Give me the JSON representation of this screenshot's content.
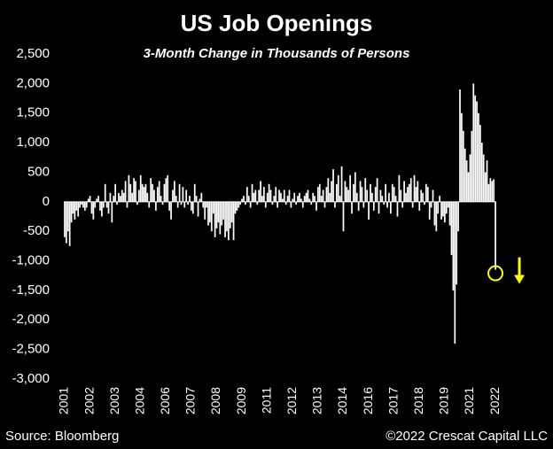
{
  "chart_data": {
    "type": "bar",
    "title": "US Job Openings",
    "subtitle": "3-Month Change in Thousands of Persons",
    "source": "Source: Bloomberg",
    "credit": "©2022 Crescat Capital LLC",
    "color": "#ffffff",
    "categories": [
      "2001",
      null,
      null,
      null,
      null,
      null,
      null,
      null,
      null,
      null,
      null,
      null,
      null,
      null,
      null,
      "2002",
      null,
      null,
      null,
      null,
      null,
      null,
      null,
      null,
      null,
      null,
      null,
      null,
      null,
      null,
      "2003",
      null,
      null,
      null,
      null,
      null,
      null,
      null,
      null,
      null,
      null,
      null,
      null,
      null,
      null,
      "2004",
      null,
      null,
      null,
      null,
      null,
      null,
      null,
      null,
      null,
      null,
      null,
      null,
      null,
      null,
      "2006",
      null,
      null,
      null,
      null,
      null,
      null,
      null,
      null,
      null,
      null,
      null,
      null,
      null,
      null,
      "2007",
      null,
      null,
      null,
      null,
      null,
      null,
      null,
      null,
      null,
      null,
      null,
      null,
      null,
      null,
      "2008",
      null,
      null,
      null,
      null,
      null,
      null,
      null,
      null,
      null,
      null,
      null,
      null,
      null,
      null,
      "2009",
      null,
      null,
      null,
      null,
      null,
      null,
      null,
      null,
      null,
      null,
      null,
      null,
      null,
      null,
      "2011",
      null,
      null,
      null,
      null,
      null,
      null,
      null,
      null,
      null,
      null,
      null,
      null,
      null,
      null,
      "2012",
      null,
      null,
      null,
      null,
      null,
      null,
      null,
      null,
      null,
      null,
      null,
      null,
      null,
      null,
      "2013",
      null,
      null,
      null,
      null,
      null,
      null,
      null,
      null,
      null,
      null,
      null,
      null,
      null,
      null,
      "2014",
      null,
      null,
      null,
      null,
      null,
      null,
      null,
      null,
      null,
      null,
      null,
      null,
      null,
      null,
      "2016",
      null,
      null,
      null,
      null,
      null,
      null,
      null,
      null,
      null,
      null,
      null,
      null,
      null,
      null,
      "2017",
      null,
      null,
      null,
      null,
      null,
      null,
      null,
      null,
      null,
      null,
      null,
      null,
      null,
      null,
      "2018",
      null,
      null,
      null,
      null,
      null,
      null,
      null,
      null,
      null,
      null,
      null,
      null,
      null,
      null,
      "2019",
      null,
      null,
      null,
      null,
      null,
      null,
      null,
      null,
      null,
      null,
      null,
      null,
      null,
      null,
      "2021",
      null,
      null,
      null,
      null,
      null,
      null,
      null,
      null,
      null,
      null,
      null,
      null,
      null,
      null,
      "2022"
    ],
    "values": [
      -600,
      -700,
      -500,
      -750,
      -350,
      -200,
      -300,
      -150,
      -250,
      -100,
      -50,
      -100,
      -150,
      -100,
      50,
      100,
      -200,
      -300,
      -100,
      50,
      100,
      -150,
      -250,
      -100,
      300,
      -100,
      -200,
      150,
      -350,
      100,
      300,
      -50,
      150,
      100,
      200,
      150,
      350,
      -100,
      450,
      300,
      150,
      400,
      350,
      -50,
      200,
      450,
      300,
      250,
      300,
      150,
      -100,
      400,
      300,
      200,
      -150,
      250,
      350,
      100,
      -50,
      300,
      400,
      450,
      -150,
      -300,
      200,
      350,
      100,
      -100,
      300,
      -50,
      250,
      -100,
      200,
      -50,
      100,
      -150,
      -200,
      300,
      100,
      -250,
      50,
      150,
      -100,
      -300,
      -100,
      -400,
      -350,
      -500,
      -200,
      -600,
      -450,
      -350,
      -550,
      -400,
      -300,
      -600,
      -500,
      -650,
      -450,
      -350,
      -650,
      -200,
      -150,
      -100,
      -50,
      50,
      100,
      -50,
      250,
      100,
      -100,
      300,
      150,
      200,
      -50,
      200,
      350,
      100,
      250,
      -100,
      150,
      300,
      200,
      -50,
      100,
      250,
      -100,
      200,
      150,
      50,
      200,
      -50,
      100,
      200,
      -100,
      50,
      150,
      -50,
      100,
      150,
      50,
      -100,
      100,
      150,
      200,
      50,
      -50,
      150,
      100,
      -150,
      250,
      300,
      100,
      200,
      -100,
      250,
      400,
      150,
      350,
      550,
      -100,
      300,
      450,
      100,
      600,
      -500,
      350,
      250,
      200,
      450,
      -200,
      300,
      500,
      150,
      -150,
      350,
      250,
      -100,
      400,
      200,
      -300,
      300,
      150,
      -150,
      250,
      400,
      -200,
      200,
      100,
      -50,
      300,
      -100,
      150,
      -200,
      300,
      250,
      100,
      -250,
      450,
      200,
      -100,
      350,
      150,
      250,
      300,
      400,
      -100,
      450,
      250,
      350,
      -150,
      200,
      150,
      -50,
      300,
      250,
      -300,
      -100,
      200,
      -400,
      -500,
      -200,
      100,
      -300,
      -250,
      -350,
      -200,
      -100,
      -400,
      -900,
      -1500,
      -2400,
      -1400,
      -500,
      1900,
      1500,
      1200,
      900,
      700,
      500,
      800,
      1200,
      2000,
      1800,
      1700,
      1500,
      1300,
      1000,
      800,
      500,
      700,
      300,
      400,
      350,
      380,
      -1150
    ],
    "ylim": [
      -3000,
      2500
    ],
    "yticks": [
      {
        "value": -3000,
        "label": "-3,000"
      },
      {
        "value": -2500,
        "label": "-2,500"
      },
      {
        "value": -2000,
        "label": "-2,000"
      },
      {
        "value": -1500,
        "label": "-1,500"
      },
      {
        "value": -1000,
        "label": "-1,000"
      },
      -500,
      0,
      500,
      {
        "value": 1000,
        "label": "1,000"
      },
      {
        "value": 1500,
        "label": "1,500"
      },
      {
        "value": 2000,
        "label": "2,000"
      },
      {
        "value": 2500,
        "label": "2,500"
      }
    ]
  }
}
